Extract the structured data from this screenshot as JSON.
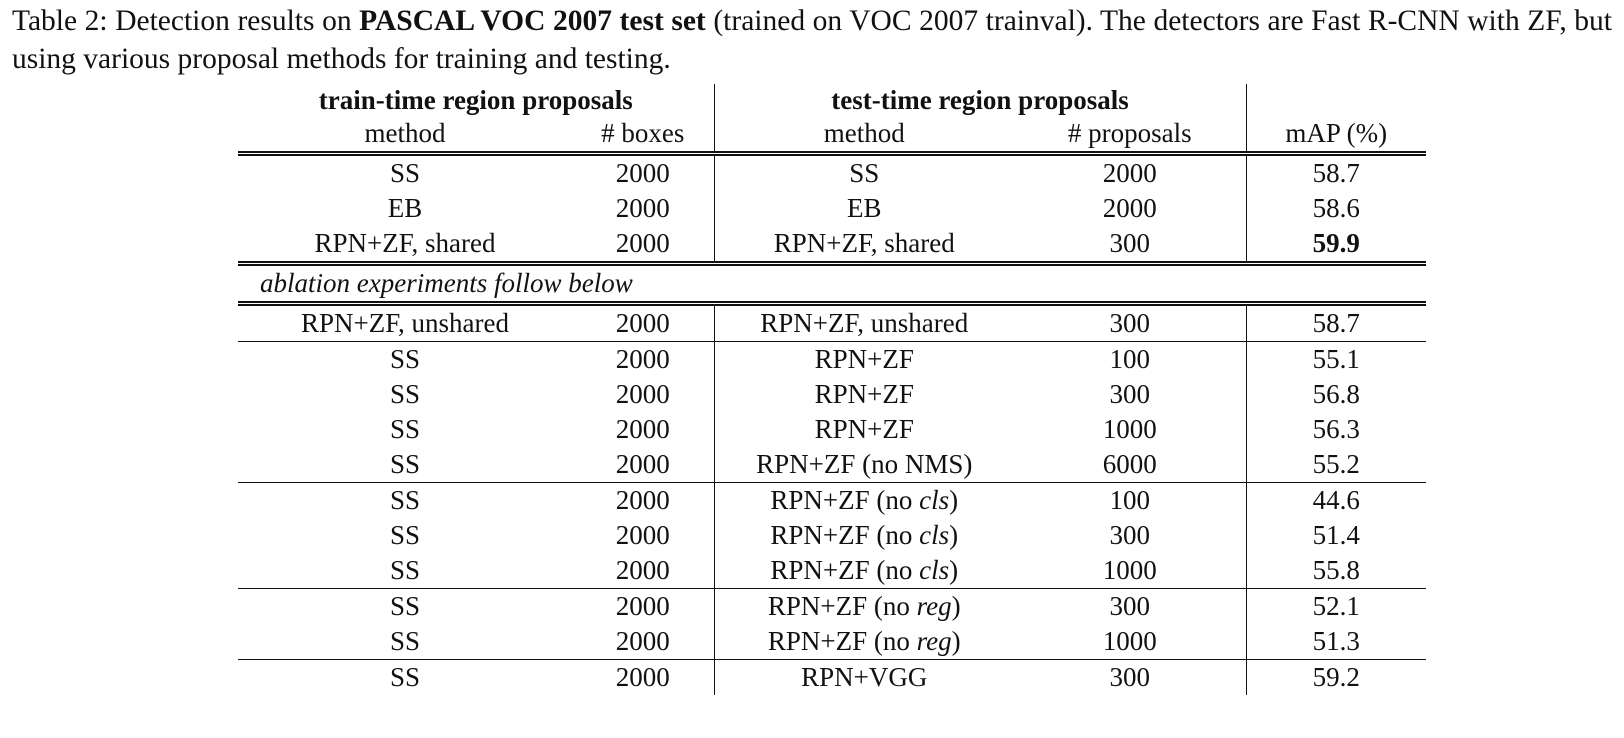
{
  "caption": {
    "parts": [
      "Table 2: Detection results on ",
      "PASCAL VOC 2007 test set",
      " (trained on VOC 2007 trainval). The detectors are Fast R-CNN with ZF, but using various proposal methods for training and testing."
    ]
  },
  "table": {
    "groups": [
      "train-time region proposals",
      "test-time region proposals"
    ],
    "columns": [
      "method",
      "# boxes",
      "method",
      "# proposals",
      "mAP (%)"
    ],
    "note": "ablation experiments follow below",
    "sections": [
      {
        "rows": [
          [
            "SS",
            2000,
            "SS",
            2000,
            58.7
          ],
          [
            "EB",
            2000,
            "EB",
            2000,
            58.6
          ],
          [
            "RPN+ZF, shared",
            2000,
            "RPN+ZF, shared",
            300,
            {
              "value": 59.9,
              "bold": true
            }
          ]
        ]
      },
      {
        "rows": [
          [
            "RPN+ZF, unshared",
            2000,
            "RPN+ZF, unshared",
            300,
            58.7
          ]
        ]
      },
      {
        "rows": [
          [
            "SS",
            2000,
            "RPN+ZF",
            100,
            55.1
          ],
          [
            "SS",
            2000,
            "RPN+ZF",
            300,
            56.8
          ],
          [
            "SS",
            2000,
            "RPN+ZF",
            1000,
            56.3
          ],
          [
            "SS",
            2000,
            "RPN+ZF (no NMS)",
            6000,
            55.2
          ]
        ]
      },
      {
        "rows": [
          [
            "SS",
            2000,
            [
              "RPN+ZF (no ",
              "cls",
              ")"
            ],
            100,
            44.6
          ],
          [
            "SS",
            2000,
            [
              "RPN+ZF (no ",
              "cls",
              ")"
            ],
            300,
            51.4
          ],
          [
            "SS",
            2000,
            [
              "RPN+ZF (no ",
              "cls",
              ")"
            ],
            1000,
            55.8
          ]
        ]
      },
      {
        "rows": [
          [
            "SS",
            2000,
            [
              "RPN+ZF (no ",
              "reg",
              ")"
            ],
            300,
            52.1
          ],
          [
            "SS",
            2000,
            [
              "RPN+ZF (no ",
              "reg",
              ")"
            ],
            1000,
            51.3
          ]
        ]
      },
      {
        "rows": [
          [
            "SS",
            2000,
            "RPN+VGG",
            300,
            59.2
          ]
        ]
      }
    ]
  }
}
